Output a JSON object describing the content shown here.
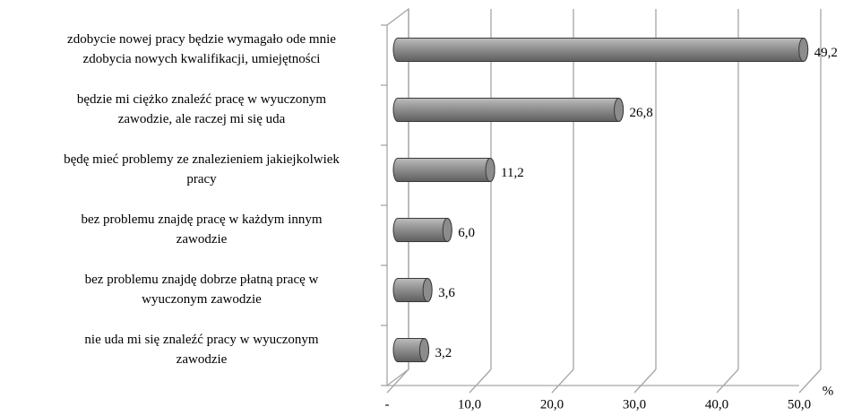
{
  "chart_data": {
    "type": "bar",
    "orientation": "horizontal",
    "categories": [
      [
        "zdobycie nowej pracy będzie wymagało ode mnie",
        "zdobycia nowych kwalifikacji, umiejętności"
      ],
      [
        "będzie mi ciężko znaleźć pracę w wyuczonym",
        "zawodzie, ale raczej mi się uda"
      ],
      [
        "będę mieć problemy ze znalezieniem jakiejkolwiek",
        "pracy"
      ],
      [
        "bez problemu znajdę pracę w każdym innym",
        "zawodzie"
      ],
      [
        "bez problemu znajdę dobrze płatną pracę w",
        "wyuczonym zawodzie"
      ],
      [
        "nie uda mi się znaleźć pracy w wyuczonym",
        "zawodzie"
      ]
    ],
    "values": [
      49.2,
      26.8,
      11.2,
      6.0,
      3.6,
      3.2
    ],
    "value_labels": [
      "49,2",
      "26,8",
      "11,2",
      "6,0",
      "3,6",
      "3,2"
    ],
    "color": "#8c8c8c",
    "xlim": [
      0,
      50
    ],
    "xticks": [
      {
        "value": 0,
        "label": "-"
      },
      {
        "value": 10,
        "label": "10,0"
      },
      {
        "value": 20,
        "label": "20,0"
      },
      {
        "value": 30,
        "label": "30,0"
      },
      {
        "value": 40,
        "label": "40,0"
      },
      {
        "value": 50,
        "label": "50,0"
      }
    ],
    "x_label": "%",
    "grid": true
  }
}
